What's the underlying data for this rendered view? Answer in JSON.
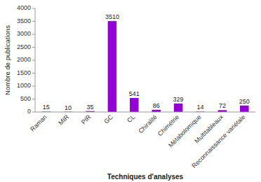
{
  "chart_data": {
    "type": "bar",
    "categories": [
      "Raman",
      "MIR",
      "PIR",
      "GC",
      "CL",
      "Chiralité",
      "Chimétrie",
      "Métabolomique",
      "Multitableaux",
      "Reconnaissance variétale"
    ],
    "values": [
      15,
      10,
      35,
      3510,
      541,
      86,
      329,
      14,
      72,
      250
    ],
    "color": "#9400D3",
    "xlabel": "Techniques d'analyses",
    "ylabel": "Nombre de publications",
    "ylim": [
      0,
      4000
    ],
    "yticks": [
      0,
      500,
      1000,
      1500,
      2000,
      2500,
      3000,
      3500,
      4000
    ],
    "data_labels": true,
    "grid": false
  }
}
